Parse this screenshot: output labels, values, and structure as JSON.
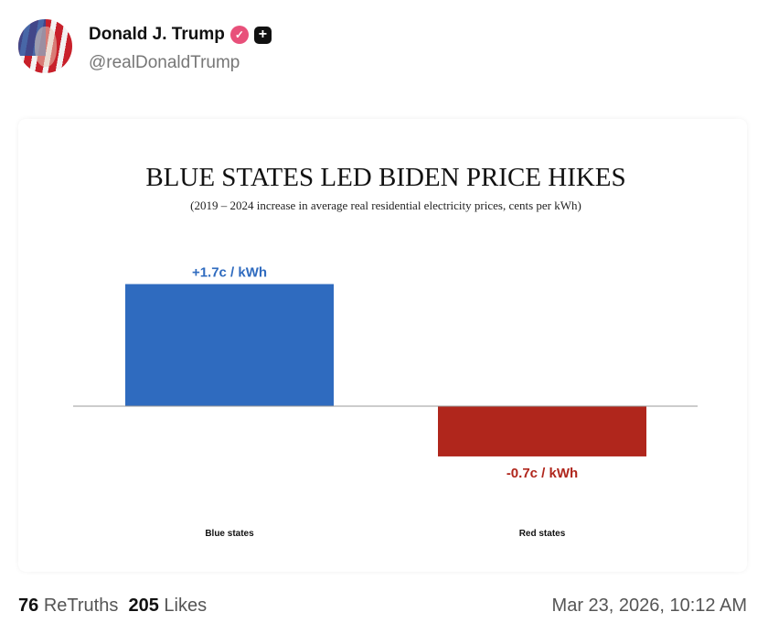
{
  "post": {
    "author_name": "Donald J. Trump",
    "handle": "@realDonaldTrump",
    "icons": [
      "verified-badge-icon",
      "plus-badge-icon"
    ],
    "retruths_count": "76",
    "retruths_label": "ReTruths",
    "likes_count": "205",
    "likes_label": "Likes",
    "timestamp": "Mar 23, 2026, 10:12 AM"
  },
  "chart_data": {
    "type": "bar",
    "title": "BLUE STATES LED BIDEN PRICE HIKES",
    "subtitle": "(2019 – 2024 increase in average real residential electricity prices, cents per kWh)",
    "categories": [
      "Blue states",
      "Red states"
    ],
    "values": [
      1.7,
      -0.7
    ],
    "data_labels": [
      "+1.7c  / kWh",
      "-0.7c  / kWh"
    ],
    "colors": [
      "#2f6bbf",
      "#b0261c"
    ],
    "ylim": [
      -0.7,
      1.7
    ],
    "grid": false
  }
}
